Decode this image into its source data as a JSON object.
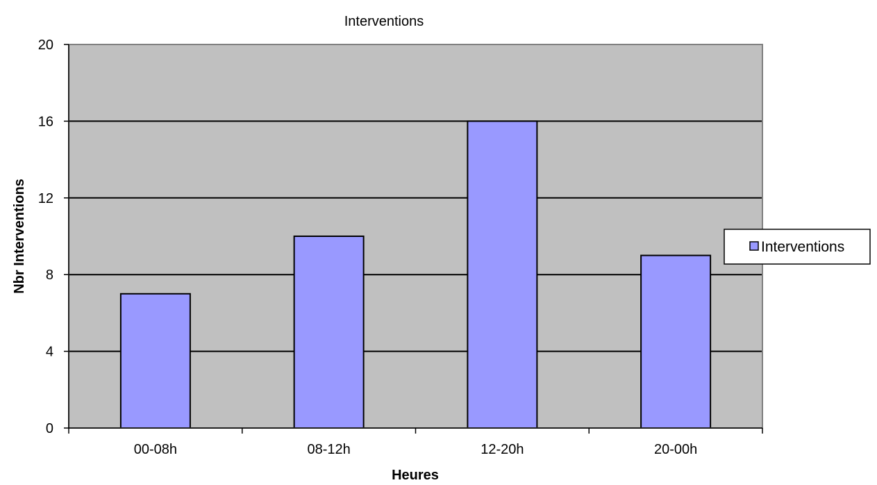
{
  "chart_data": {
    "type": "bar",
    "title": "Interventions",
    "xlabel": "Heures",
    "ylabel": "Nbr Interventions",
    "categories": [
      "00-08h",
      "08-12h",
      "12-20h",
      "20-00h"
    ],
    "series": [
      {
        "name": "Interventions",
        "values": [
          7,
          10,
          16,
          9
        ]
      }
    ],
    "ylim": [
      0,
      20
    ],
    "yticks": [
      0,
      4,
      8,
      12,
      16,
      20
    ],
    "ytick_labels": [
      "0",
      "4",
      "8",
      "12",
      "16",
      "20"
    ],
    "grid": true,
    "legend": "right",
    "colors": {
      "bar": "#9999ff",
      "plot_bg": "#c0c0c0",
      "gridline": "#000000",
      "border": "#000000"
    }
  }
}
